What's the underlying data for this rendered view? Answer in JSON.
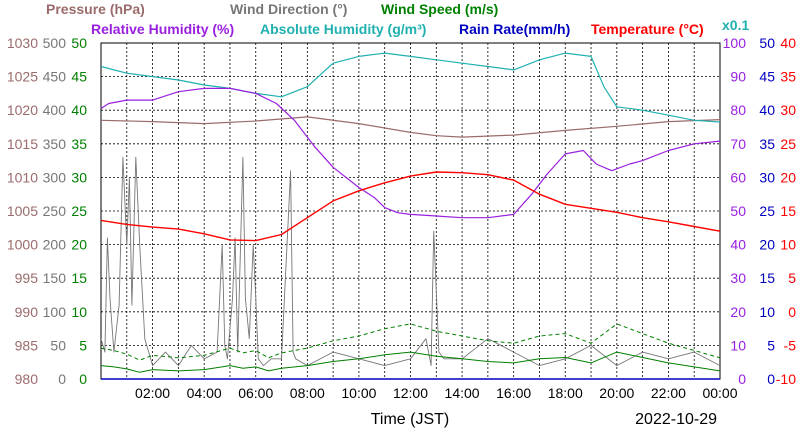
{
  "chart_data": {
    "type": "line",
    "date": "2022-10-29",
    "xlabel": "Time (JST)",
    "x_ticks": [
      "02:00",
      "04:00",
      "06:00",
      "08:00",
      "10:00",
      "12:00",
      "14:00",
      "16:00",
      "18:00",
      "20:00",
      "22:00",
      "00:00"
    ],
    "x_range_hours": [
      0,
      24
    ],
    "colors": {
      "pressure": "#9b6b6b",
      "wind_direction": "#777777",
      "wind_speed": "#008000",
      "humidity": "#9a20e0",
      "abs_humidity": "#20b0b0",
      "rain": "#0000c0",
      "temperature": "#ff0000"
    },
    "titles": {
      "pressure": "Pressure (hPa)",
      "wind_direction": "Wind Direction (°)",
      "wind_speed": "Wind Speed (m/s)",
      "humidity": "Relative Humidity (%)",
      "abs_humidity": "Absolute Humidity (g/m³)",
      "rain": "Rain Rate(mm/h)",
      "temperature": "Temperature (°C)",
      "abs_scale_note": "x0.1"
    },
    "axes": {
      "pressure": {
        "ticks": [
          "980",
          "985",
          "990",
          "995",
          "1000",
          "1005",
          "1010",
          "1015",
          "1020",
          "1025",
          "1030"
        ],
        "range": [
          980,
          1030
        ]
      },
      "wind_direction": {
        "ticks": [
          "0",
          "50",
          "100",
          "150",
          "200",
          "250",
          "300",
          "350",
          "400",
          "450",
          "500"
        ],
        "range": [
          0,
          500
        ]
      },
      "wind_speed": {
        "ticks": [
          "0",
          "5",
          "10",
          "15",
          "20",
          "25",
          "30",
          "35",
          "40",
          "45",
          "50"
        ],
        "range": [
          0,
          50
        ]
      },
      "humidity": {
        "ticks": [
          "0",
          "10",
          "20",
          "30",
          "40",
          "50",
          "60",
          "70",
          "80",
          "90",
          "100"
        ],
        "range": [
          0,
          100
        ]
      },
      "rain": {
        "ticks": [
          "0",
          "5",
          "10",
          "15",
          "20",
          "25",
          "30",
          "35",
          "40",
          "45",
          "50"
        ],
        "range": [
          0,
          50
        ]
      },
      "temperature": {
        "ticks": [
          "-10",
          "-5",
          "0",
          "5",
          "10",
          "15",
          "20",
          "25",
          "30",
          "35",
          "40"
        ],
        "range": [
          -10,
          40
        ]
      }
    },
    "series": [
      {
        "name": "Temperature",
        "axis": "temperature",
        "x": [
          0,
          1,
          2,
          3,
          4,
          5,
          6,
          7,
          8,
          9,
          10,
          11,
          12,
          13,
          14,
          15,
          16,
          17,
          18,
          19,
          20,
          21,
          22,
          23,
          24
        ],
        "y": [
          13.6,
          13.0,
          12.6,
          12.3,
          11.6,
          10.7,
          10.6,
          11.5,
          14.0,
          16.5,
          18.0,
          19.2,
          20.2,
          20.8,
          20.7,
          20.4,
          19.6,
          17.5,
          16.0,
          15.4,
          14.8,
          14.0,
          13.4,
          12.7,
          12.0
        ]
      },
      {
        "name": "Relative Humidity",
        "axis": "humidity",
        "x": [
          0,
          0.3,
          1,
          2,
          3,
          4,
          5,
          6,
          6.8,
          7.5,
          8.3,
          9,
          10,
          10.6,
          11,
          11.5,
          12,
          13,
          14,
          15,
          16,
          16.7,
          17.3,
          18,
          18.7,
          19.2,
          19.8,
          20.5,
          21,
          22,
          23,
          24
        ],
        "y": [
          80.5,
          82,
          83,
          83,
          85.5,
          86.5,
          86.5,
          85,
          82,
          77,
          69,
          63,
          57,
          54,
          51,
          49.5,
          49,
          48.5,
          48,
          48,
          49,
          55,
          61,
          67,
          68,
          64,
          62,
          64,
          65,
          68,
          70,
          70.8
        ]
      },
      {
        "name": "Absolute Humidity",
        "axis": "humidity",
        "x": [
          0,
          1,
          2,
          3,
          4,
          5,
          6,
          7,
          8,
          9,
          10,
          11,
          12,
          13,
          14,
          15,
          16,
          17,
          18,
          19,
          19.5,
          20,
          21,
          22,
          23,
          24
        ],
        "y": [
          93,
          91,
          90,
          89,
          87.5,
          86.5,
          85,
          84,
          87,
          94,
          96,
          97,
          96,
          95,
          94,
          93,
          92,
          95,
          97,
          96,
          87,
          81,
          80,
          78.5,
          77,
          76.5
        ]
      },
      {
        "name": "Pressure",
        "axis": "pressure",
        "x": [
          0,
          2,
          4,
          6,
          8,
          10,
          12,
          13,
          14,
          16,
          18,
          20,
          22,
          24
        ],
        "y": [
          1018.5,
          1018.3,
          1018.0,
          1018.4,
          1019.0,
          1018.0,
          1016.7,
          1016.2,
          1016.0,
          1016.3,
          1017.0,
          1017.6,
          1018.3,
          1018.6
        ]
      },
      {
        "name": "Wind Speed",
        "axis": "wind_speed",
        "x": [
          0,
          0.5,
          1,
          1.5,
          2,
          3,
          4,
          5,
          5.5,
          6,
          6.5,
          7,
          8,
          9,
          10,
          11,
          12,
          13,
          14,
          15,
          16,
          17,
          18,
          19,
          20,
          21,
          22,
          23,
          24
        ],
        "y": [
          2,
          1.8,
          1.5,
          1,
          1.4,
          1.2,
          1.4,
          2,
          1.6,
          1.8,
          1.2,
          1.6,
          2,
          2.6,
          3,
          3.6,
          4,
          3.4,
          3,
          2.6,
          2.4,
          3,
          3.2,
          2.4,
          4,
          3.2,
          2.4,
          1.8,
          1.2
        ]
      },
      {
        "name": "Wind Direction",
        "axis": "wind_direction",
        "x": [
          0,
          0.15,
          0.25,
          0.35,
          0.5,
          0.7,
          0.85,
          1.0,
          1.1,
          1.2,
          1.35,
          1.5,
          1.7,
          2,
          2.5,
          3,
          3.5,
          4,
          4.5,
          4.7,
          4.8,
          4.9,
          5.1,
          5.2,
          5.3,
          5.5,
          5.6,
          5.75,
          5.9,
          6,
          6.1,
          6.3,
          6.6,
          7,
          7.35,
          7.45,
          7.55,
          8,
          9,
          10,
          11,
          12,
          12.6,
          12.8,
          12.9,
          13.1,
          13.3,
          14,
          15,
          16,
          17,
          18,
          19,
          20,
          21,
          22,
          23,
          24
        ],
        "y": [
          60,
          40,
          210,
          120,
          40,
          110,
          330,
          200,
          300,
          110,
          330,
          200,
          60,
          20,
          40,
          20,
          50,
          30,
          40,
          200,
          50,
          30,
          120,
          210,
          40,
          330,
          120,
          60,
          200,
          120,
          30,
          20,
          30,
          30,
          310,
          40,
          30,
          20,
          40,
          30,
          20,
          30,
          60,
          20,
          220,
          40,
          30,
          30,
          60,
          40,
          20,
          30,
          50,
          20,
          40,
          30,
          40,
          20
        ]
      },
      {
        "name": "Rain Rate",
        "axis": "rain",
        "x": [
          0,
          24
        ],
        "y": [
          0,
          0
        ]
      }
    ]
  }
}
